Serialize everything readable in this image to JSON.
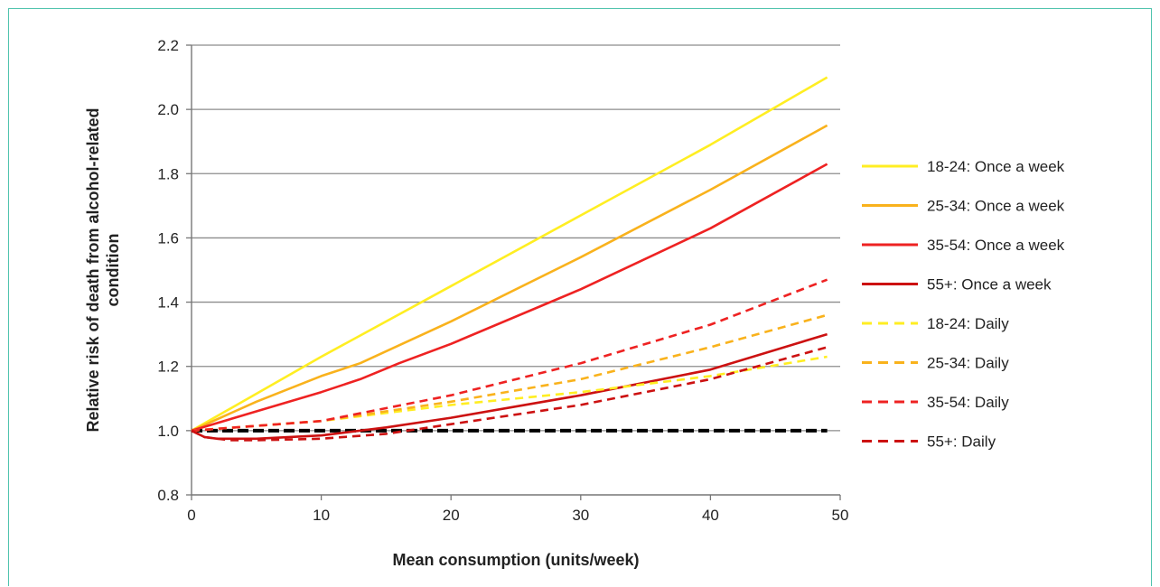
{
  "chart_data": {
    "type": "line",
    "title": "",
    "xlabel": "Mean consumption (units/week)",
    "ylabel": "Relative risk of death from alcohol-related condition",
    "xlim": [
      0,
      50
    ],
    "ylim": [
      0.8,
      2.2
    ],
    "xticks": [
      "0",
      "10",
      "20",
      "30",
      "40",
      "50"
    ],
    "yticks": [
      "0.8",
      "1.0",
      "1.2",
      "1.4",
      "1.6",
      "1.8",
      "2.0",
      "2.2"
    ],
    "grid": "horizontal",
    "legend_position": "right",
    "reference_line": {
      "y": 1.0,
      "color": "#000000",
      "style": "dashed"
    },
    "series": [
      {
        "name": "18-24: Once a week",
        "color": "#ffee22",
        "style": "solid",
        "x": [
          0,
          10,
          20,
          30,
          40,
          49
        ],
        "y": [
          1.0,
          1.23,
          1.45,
          1.67,
          1.89,
          2.1
        ]
      },
      {
        "name": "25-34: Once a week",
        "color": "#f9b21c",
        "style": "solid",
        "x": [
          0,
          5,
          10,
          13,
          20,
          30,
          40,
          49
        ],
        "y": [
          1.0,
          1.09,
          1.17,
          1.21,
          1.34,
          1.54,
          1.75,
          1.95
        ]
      },
      {
        "name": "35-54: Once a week",
        "color": "#ee2222",
        "style": "solid",
        "x": [
          0,
          5,
          10,
          13,
          16,
          20,
          30,
          40,
          49
        ],
        "y": [
          1.0,
          1.06,
          1.12,
          1.16,
          1.21,
          1.27,
          1.44,
          1.63,
          1.83
        ]
      },
      {
        "name": "55+: Once a week",
        "color": "#cc1111",
        "style": "solid",
        "x": [
          0,
          1,
          2,
          5,
          10,
          15,
          20,
          30,
          40,
          49
        ],
        "y": [
          1.0,
          0.98,
          0.975,
          0.975,
          0.985,
          1.01,
          1.04,
          1.11,
          1.19,
          1.3
        ]
      },
      {
        "name": "18-24: Daily",
        "color": "#ffee22",
        "style": "dashed",
        "x": [
          0,
          10,
          20,
          30,
          40,
          49
        ],
        "y": [
          1.0,
          1.03,
          1.08,
          1.12,
          1.17,
          1.23
        ]
      },
      {
        "name": "25-34: Daily",
        "color": "#f9b21c",
        "style": "dashed",
        "x": [
          0,
          10,
          20,
          30,
          40,
          49
        ],
        "y": [
          1.0,
          1.03,
          1.09,
          1.16,
          1.26,
          1.36
        ]
      },
      {
        "name": "35-54: Daily",
        "color": "#ee2222",
        "style": "dashed",
        "x": [
          0,
          10,
          20,
          30,
          40,
          49
        ],
        "y": [
          1.0,
          1.03,
          1.11,
          1.21,
          1.33,
          1.47
        ]
      },
      {
        "name": "55+: Daily",
        "color": "#cc1111",
        "style": "dashed",
        "x": [
          0,
          1,
          3,
          5,
          10,
          15,
          20,
          30,
          40,
          49
        ],
        "y": [
          1.0,
          0.98,
          0.97,
          0.97,
          0.975,
          0.99,
          1.02,
          1.08,
          1.16,
          1.26
        ]
      }
    ]
  }
}
